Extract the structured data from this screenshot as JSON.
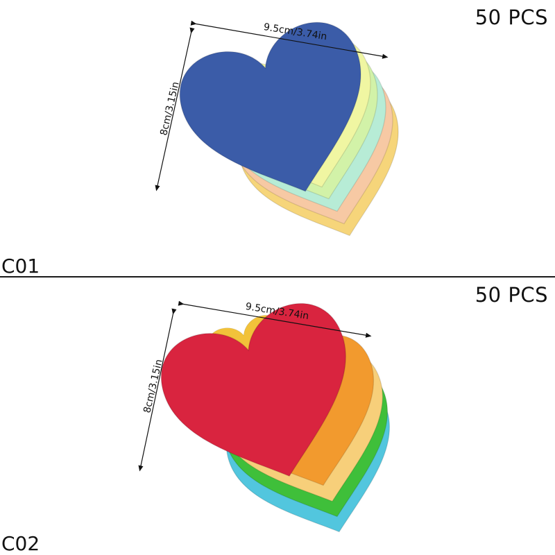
{
  "variants": [
    {
      "code": "C01",
      "quantity": "50 PCS",
      "width_label": "9.5cm/3.74in",
      "height_label": "8cm/3.15in",
      "heart_colors": [
        "#f6d57a",
        "#f7c9a4",
        "#b7ecd6",
        "#d2f2a8",
        "#f0f6a2",
        "#3b5ca8"
      ]
    },
    {
      "code": "C02",
      "quantity": "50 PCS",
      "width_label": "9.5cm/3.74in",
      "height_label": "8cm/3.15in",
      "heart_colors": [
        "#52c6de",
        "#3fbf3a",
        "#f7cf7a",
        "#f29a2e",
        "#f2c23a",
        "#d9243f"
      ]
    }
  ]
}
